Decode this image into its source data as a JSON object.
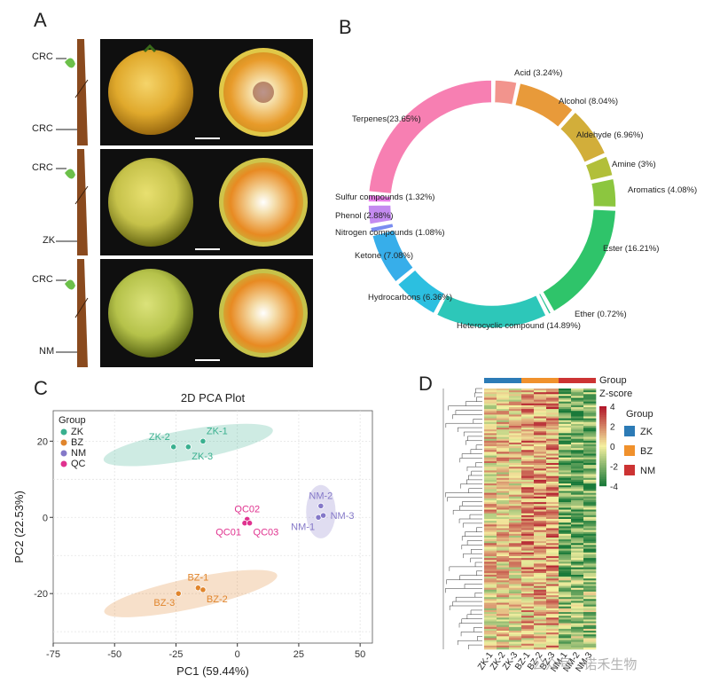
{
  "panels": {
    "a": {
      "letter": "A",
      "rows": [
        {
          "top_label": "CRC",
          "bottom_label": "CRC"
        },
        {
          "top_label": "CRC",
          "bottom_label": "ZK"
        },
        {
          "top_label": "CRC",
          "bottom_label": "NM"
        }
      ]
    },
    "b": {
      "letter": "B"
    },
    "c": {
      "letter": "C"
    },
    "d": {
      "letter": "D"
    }
  },
  "chart_data": [
    {
      "type": "pie",
      "variant": "donut",
      "labels": [
        "Acid (3.24%)",
        "Alcohol (8.04%)",
        "Aldehyde (6.96%)",
        "Amine (3%)",
        "Aromatics (4.08%)",
        "Ester (16.21%)",
        "Ether (0.72%)",
        "Heterocyclic compound (14.89%)",
        "Hydrocarbons (6.36%)",
        "Ketone (7.08%)",
        "Nitrogen compounds (1.08%)",
        "Phenol (2.88%)",
        "Sulfur compounds (1.32%)",
        "Terpenes(23.65%)"
      ],
      "values": [
        3.24,
        8.04,
        6.96,
        3.0,
        4.08,
        16.21,
        0.72,
        14.89,
        6.36,
        7.08,
        1.08,
        2.88,
        1.32,
        23.65
      ],
      "colors": [
        "#f2948d",
        "#e89a3a",
        "#d2ae3a",
        "#b2bf3a",
        "#8cc63f",
        "#2fc46a",
        "#2fc495",
        "#2dc7b9",
        "#2cbfe0",
        "#37aeea",
        "#7a8df0",
        "#c48af0",
        "#e87ee8",
        "#f77fb2"
      ]
    },
    {
      "type": "scatter",
      "title": "2D PCA Plot",
      "xlabel": "PC1 (59.44%)",
      "ylabel": "PC2 (22.53%)",
      "xlim": [
        -75,
        55
      ],
      "ylim": [
        -33,
        28
      ],
      "xticks": [
        -75,
        -50,
        -25,
        0,
        25,
        50
      ],
      "yticks": [
        -20,
        0,
        20
      ],
      "grid": true,
      "legend_title": "Group",
      "legend_position": "top-left",
      "series": [
        {
          "name": "ZK",
          "color": "#3ab08f",
          "points": [
            {
              "label": "ZK-1",
              "x": -14,
              "y": 20
            },
            {
              "label": "ZK-2",
              "x": -26,
              "y": 18.5
            },
            {
              "label": "ZK-3",
              "x": -20,
              "y": 18.5
            }
          ]
        },
        {
          "name": "BZ",
          "color": "#e0852c",
          "points": [
            {
              "label": "BZ-1",
              "x": -16,
              "y": -18.5
            },
            {
              "label": "BZ-2",
              "x": -14,
              "y": -19
            },
            {
              "label": "BZ-3",
              "x": -24,
              "y": -20
            }
          ]
        },
        {
          "name": "NM",
          "color": "#8478c8",
          "points": [
            {
              "label": "NM-2",
              "x": 34,
              "y": 3
            },
            {
              "label": "NM-1",
              "x": 33,
              "y": 0
            },
            {
              "label": "NM-3",
              "x": 35,
              "y": 0.5
            }
          ]
        },
        {
          "name": "QC",
          "color": "#e0328f",
          "points": [
            {
              "label": "QC02",
              "x": 4,
              "y": -0.5
            },
            {
              "label": "QC01",
              "x": 3,
              "y": -1.5
            },
            {
              "label": "QC03",
              "x": 5,
              "y": -1.5
            }
          ]
        }
      ],
      "point_label_positions": {
        "ZK-1": "above-right",
        "ZK-2": "above-left",
        "ZK-3": "below-right",
        "BZ-1": "above",
        "BZ-2": "below-right",
        "BZ-3": "below-left",
        "NM-2": "above",
        "NM-1": "below-left",
        "NM-3": "right",
        "QC02": "above",
        "QC01": "below-left",
        "QC03": "below-right"
      }
    },
    {
      "type": "heatmap",
      "columns": [
        "ZK-1",
        "ZK-2",
        "ZK-3",
        "BZ-1",
        "BZ-2",
        "BZ-3",
        "NM-1",
        "NM-2",
        "NM-3"
      ],
      "column_groups": [
        "ZK",
        "ZK",
        "ZK",
        "BZ",
        "BZ",
        "BZ",
        "NM",
        "NM",
        "NM"
      ],
      "annotation_label": "Group",
      "colorbar_label": "Z-score",
      "colorbar_ticks": [
        "4",
        "2",
        "0",
        "-2",
        "-4"
      ],
      "group_legend_title": "Group",
      "groups": [
        {
          "name": "ZK",
          "color": "#2c7bb6"
        },
        {
          "name": "BZ",
          "color": "#f0912c"
        },
        {
          "name": "NM",
          "color": "#cc3333"
        }
      ],
      "color_scale": {
        "low": "#1a7a3a",
        "mid": "#f5f0a0",
        "high": "#b2182b"
      }
    }
  ],
  "watermark": "公众号 · 诺禾生物"
}
